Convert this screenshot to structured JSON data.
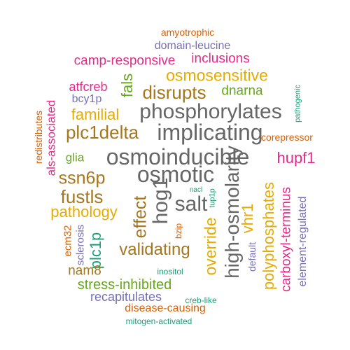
{
  "palette": {
    "teal": "#1b9e77",
    "orange": "#d95f02",
    "purple": "#7570b3",
    "magenta": "#e7298a",
    "green": "#66a61e",
    "gold": "#e6ab02",
    "brown": "#a6761d",
    "gray": "#666666"
  },
  "words": [
    {
      "text": "amyotrophic",
      "color": "#d95f02",
      "vertical": false
    },
    {
      "text": "domain-leucine",
      "color": "#7570b3",
      "vertical": false
    },
    {
      "text": "camp-responsive",
      "color": "#e7298a",
      "vertical": false
    },
    {
      "text": "inclusions",
      "color": "#e7298a",
      "vertical": false
    },
    {
      "text": "osmosensitive",
      "color": "#e6ab02",
      "vertical": false
    },
    {
      "text": "fals",
      "color": "#66a61e",
      "vertical": true
    },
    {
      "text": "atfcreb",
      "color": "#e7298a",
      "vertical": false
    },
    {
      "text": "disrupts",
      "color": "#a6761d",
      "vertical": false
    },
    {
      "text": "dnarna",
      "color": "#66a61e",
      "vertical": false
    },
    {
      "text": "bcy1p",
      "color": "#7570b3",
      "vertical": false
    },
    {
      "text": "pathogenic",
      "color": "#1b9e77",
      "vertical": true
    },
    {
      "text": "phosphorylates",
      "color": "#666666",
      "vertical": false
    },
    {
      "text": "redistributes",
      "color": "#d95f02",
      "vertical": true
    },
    {
      "text": "als-associated",
      "color": "#e7298a",
      "vertical": true
    },
    {
      "text": "familial",
      "color": "#e6ab02",
      "vertical": false
    },
    {
      "text": "plc1delta",
      "color": "#a6761d",
      "vertical": false
    },
    {
      "text": "implicating",
      "color": "#666666",
      "vertical": false
    },
    {
      "text": "corepressor",
      "color": "#d95f02",
      "vertical": false
    },
    {
      "text": "glia",
      "color": "#66a61e",
      "vertical": false
    },
    {
      "text": "osmoinducible",
      "color": "#666666",
      "vertical": false
    },
    {
      "text": "hupf1",
      "color": "#e7298a",
      "vertical": false
    },
    {
      "text": "ssn6p",
      "color": "#a6761d",
      "vertical": false
    },
    {
      "text": "osmotic",
      "color": "#666666",
      "vertical": false
    },
    {
      "text": "nacl",
      "color": "#1b9e77",
      "vertical": false
    },
    {
      "text": "tup1p",
      "color": "#1b9e77",
      "vertical": true
    },
    {
      "text": "high-osmolarity",
      "color": "#666666",
      "vertical": true
    },
    {
      "text": "hog1",
      "color": "#666666",
      "vertical": true
    },
    {
      "text": "fustls",
      "color": "#a6761d",
      "vertical": false
    },
    {
      "text": "salt",
      "color": "#666666",
      "vertical": false
    },
    {
      "text": "polyphosphates",
      "color": "#e6ab02",
      "vertical": true
    },
    {
      "text": "carboxyl-terminus",
      "color": "#e7298a",
      "vertical": true
    },
    {
      "text": "element-regulated",
      "color": "#7570b3",
      "vertical": true
    },
    {
      "text": "vhr1",
      "color": "#e6ab02",
      "vertical": true
    },
    {
      "text": "pathology",
      "color": "#e6ab02",
      "vertical": false
    },
    {
      "text": "effect",
      "color": "#a6761d",
      "vertical": true
    },
    {
      "text": "override",
      "color": "#e6ab02",
      "vertical": true
    },
    {
      "text": "ecm32",
      "color": "#d95f02",
      "vertical": true
    },
    {
      "text": "sclerosis",
      "color": "#7570b3",
      "vertical": true
    },
    {
      "text": "plc1p",
      "color": "#1b9e77",
      "vertical": true
    },
    {
      "text": "bzip",
      "color": "#d95f02",
      "vertical": true
    },
    {
      "text": "default",
      "color": "#7570b3",
      "vertical": true
    },
    {
      "text": "validating",
      "color": "#a6761d",
      "vertical": false
    },
    {
      "text": "nam8",
      "color": "#a6761d",
      "vertical": false
    },
    {
      "text": "inositol",
      "color": "#1b9e77",
      "vertical": false
    },
    {
      "text": "stress-inhibited",
      "color": "#66a61e",
      "vertical": false
    },
    {
      "text": "recapitulates",
      "color": "#7570b3",
      "vertical": false
    },
    {
      "text": "creb-like",
      "color": "#1b9e77",
      "vertical": false
    },
    {
      "text": "disease-causing",
      "color": "#d95f02",
      "vertical": false
    },
    {
      "text": "mitogen-activated",
      "color": "#1b9e77",
      "vertical": false
    }
  ]
}
